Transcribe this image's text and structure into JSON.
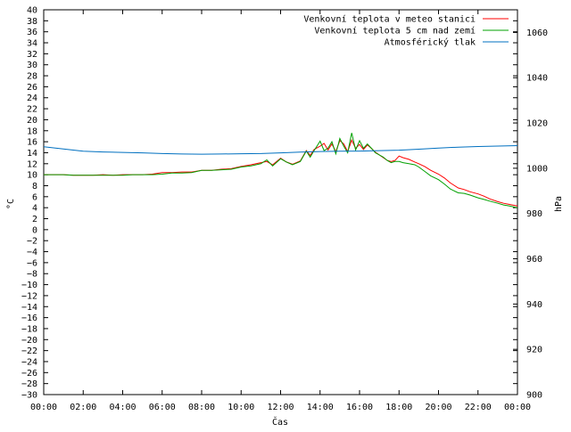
{
  "chart_data": {
    "type": "line",
    "title": "",
    "xlabel": "Čas",
    "ylabel_left": "°C",
    "ylabel_right": "hPa",
    "x_ticks": [
      "00:00",
      "02:00",
      "04:00",
      "06:00",
      "08:00",
      "10:00",
      "12:00",
      "14:00",
      "16:00",
      "18:00",
      "20:00",
      "22:00",
      "00:00"
    ],
    "xlim_hours": [
      0,
      24
    ],
    "ylim_left": [
      -30,
      40
    ],
    "ylim_right": [
      900,
      1070
    ],
    "left_ticks": [
      40,
      38,
      36,
      34,
      32,
      30,
      28,
      26,
      24,
      22,
      20,
      18,
      16,
      14,
      12,
      10,
      8,
      6,
      4,
      2,
      0,
      -2,
      -4,
      -6,
      -8,
      -10,
      -12,
      -14,
      -16,
      -18,
      -20,
      -22,
      -24,
      -26,
      -28,
      -30
    ],
    "right_ticks": [
      1060,
      1040,
      1020,
      1000,
      980,
      960,
      940,
      920,
      900
    ],
    "grid": false,
    "legend_position": "top-right",
    "series": [
      {
        "name": "Venkovní teplota v meteo stanici",
        "color": "#ff0000",
        "axis": "left",
        "x": [
          0,
          0.5,
          1,
          1.5,
          2,
          2.5,
          3,
          3.5,
          4,
          4.5,
          5,
          5.5,
          6,
          6.5,
          7,
          7.5,
          8,
          8.5,
          9,
          9.5,
          10,
          10.5,
          11,
          11.3,
          11.6,
          12,
          12.3,
          12.6,
          13,
          13.3,
          13.5,
          13.7,
          14,
          14.2,
          14.4,
          14.6,
          14.8,
          15,
          15.2,
          15.4,
          15.6,
          15.8,
          16,
          16.2,
          16.4,
          16.6,
          16.8,
          17,
          17.2,
          17.4,
          17.6,
          17.8,
          18,
          18.2,
          18.5,
          18.8,
          19,
          19.3,
          19.6,
          20,
          20.3,
          20.6,
          21,
          21.3,
          21.6,
          22,
          22.3,
          22.6,
          23,
          23.3,
          23.6,
          24
        ],
        "values": [
          10,
          10,
          10,
          9.9,
          9.9,
          9.9,
          10,
          9.9,
          10,
          10,
          10,
          10.1,
          10.4,
          10.4,
          10.5,
          10.5,
          10.8,
          10.8,
          11,
          11.1,
          11.5,
          11.8,
          12.2,
          12.4,
          11.8,
          13,
          12.3,
          11.9,
          12.5,
          14.4,
          13.5,
          14.6,
          15.2,
          15.7,
          14.5,
          15.6,
          14.2,
          16.2,
          15.6,
          14.2,
          16.3,
          14.8,
          15.5,
          14.6,
          15.4,
          14.8,
          14.1,
          13.6,
          13.1,
          12.6,
          12.4,
          12.6,
          13.4,
          13.1,
          12.8,
          12.3,
          12,
          11.5,
          10.8,
          10.1,
          9.4,
          8.5,
          7.6,
          7.3,
          6.9,
          6.5,
          6.1,
          5.6,
          5.1,
          4.8,
          4.6,
          4.3
        ]
      },
      {
        "name": "Venkovní teplota 5 cm nad zemí",
        "color": "#00a000",
        "axis": "left",
        "x": [
          0,
          0.5,
          1,
          1.5,
          2,
          2.5,
          3,
          3.5,
          4,
          4.5,
          5,
          5.5,
          6,
          6.5,
          7,
          7.5,
          8,
          8.5,
          9,
          9.5,
          10,
          10.5,
          11,
          11.3,
          11.6,
          12,
          12.3,
          12.6,
          13,
          13.3,
          13.5,
          13.7,
          14,
          14.2,
          14.4,
          14.6,
          14.8,
          15,
          15.2,
          15.4,
          15.6,
          15.8,
          16,
          16.2,
          16.4,
          16.6,
          16.8,
          17,
          17.2,
          17.4,
          17.6,
          17.8,
          18,
          18.2,
          18.5,
          18.8,
          19,
          19.3,
          19.6,
          20,
          20.3,
          20.6,
          21,
          21.3,
          21.6,
          22,
          22.3,
          22.6,
          23,
          23.3,
          23.6,
          24
        ],
        "values": [
          10,
          10,
          10,
          9.9,
          9.9,
          9.9,
          9.9,
          9.9,
          9.9,
          10,
          10,
          10,
          10.1,
          10.3,
          10.3,
          10.4,
          10.8,
          10.8,
          10.9,
          11,
          11.4,
          11.6,
          12,
          12.7,
          11.6,
          12.9,
          12.3,
          11.8,
          12.4,
          14.3,
          13.2,
          14.4,
          16.1,
          14.4,
          14.8,
          16,
          13.8,
          16.6,
          15.2,
          14,
          17.6,
          14.5,
          16.2,
          14.8,
          15.6,
          14.8,
          14,
          13.6,
          13.2,
          12.6,
          12.2,
          12.4,
          12.4,
          12.2,
          12,
          11.8,
          11.4,
          10.6,
          9.8,
          9.1,
          8.3,
          7.4,
          6.7,
          6.6,
          6.3,
          5.8,
          5.5,
          5.2,
          4.8,
          4.5,
          4.3,
          4
        ]
      },
      {
        "name": "Atmosférický tlak",
        "color": "#0070c0",
        "axis": "right",
        "x": [
          0,
          1,
          2,
          3,
          4,
          5,
          6,
          7,
          8,
          9,
          10,
          11,
          12,
          13,
          14,
          15,
          16,
          17,
          18,
          19,
          20,
          21,
          22,
          23,
          24
        ],
        "values": [
          1009.5,
          1008.5,
          1007.5,
          1007.2,
          1007,
          1006.8,
          1006.5,
          1006.3,
          1006.2,
          1006.3,
          1006.4,
          1006.5,
          1006.8,
          1007.1,
          1007.4,
          1007.5,
          1007.6,
          1007.8,
          1008,
          1008.4,
          1008.9,
          1009.3,
          1009.6,
          1009.8,
          1010
        ]
      }
    ]
  }
}
